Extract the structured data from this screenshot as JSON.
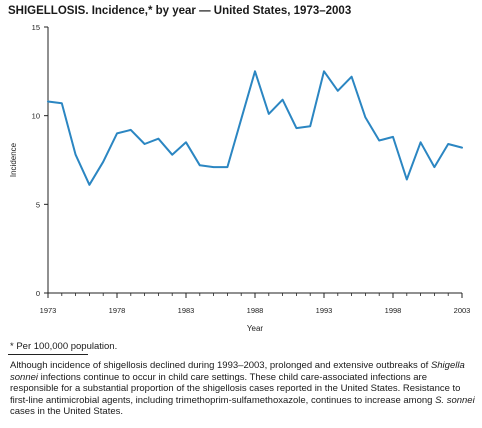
{
  "chart_data": {
    "type": "line",
    "title": "SHIGELLOSIS. Incidence,* by year — United States, 1973–2003",
    "xlabel": "Year",
    "ylabel": "Incidence",
    "xlim": [
      1973,
      2003
    ],
    "ylim": [
      0,
      15
    ],
    "xticks": [
      1973,
      1978,
      1983,
      1988,
      1993,
      1998,
      2003
    ],
    "yticks": [
      0,
      5,
      10,
      15
    ],
    "grid": false,
    "color": "#2b86c2",
    "series": [
      {
        "x": [
          1973,
          1974,
          1975,
          1976,
          1977,
          1978,
          1979,
          1980,
          1981,
          1982,
          1983,
          1984,
          1985,
          1986,
          1987,
          1988,
          1989,
          1990,
          1991,
          1992,
          1993,
          1994,
          1995,
          1996,
          1997,
          1998,
          1999,
          2000,
          2001,
          2002,
          2003
        ],
        "values": [
          10.8,
          10.7,
          7.8,
          6.1,
          7.4,
          9.0,
          9.2,
          8.4,
          8.7,
          7.8,
          8.5,
          7.2,
          7.1,
          7.1,
          9.8,
          12.5,
          10.1,
          10.9,
          9.3,
          9.4,
          12.5,
          11.4,
          12.2,
          9.9,
          8.6,
          8.8,
          6.4,
          8.5,
          7.1,
          8.4,
          8.2
        ]
      }
    ]
  },
  "footnote": "* Per 100,000 population.",
  "note": {
    "part1": "Although incidence of shigellosis declined during 1993–2003, prolonged and extensive outbreaks of ",
    "italic1": "Shigella sonnei",
    "part2": " infections continue to occur in child care settings. These child care-associated infections are responsible for a substantial proportion of the shigellosis cases reported in the United States. Resistance to first-line antimicrobial agents, including trimethoprim-sulfamethoxazole, continues to increase among ",
    "italic2": "S. sonnei",
    "part3": " cases in the United States."
  }
}
